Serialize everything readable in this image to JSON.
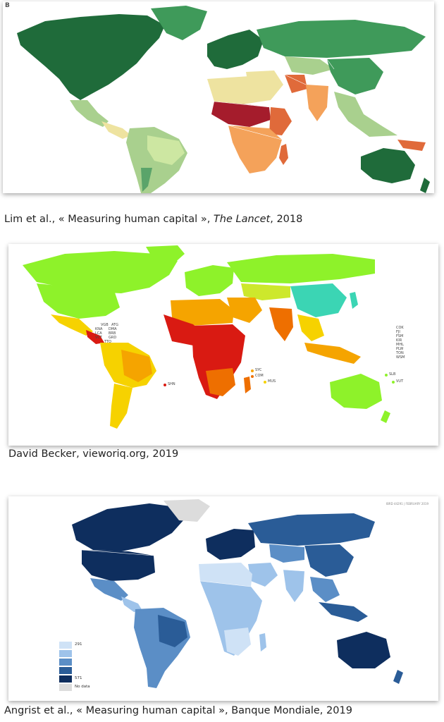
{
  "maps": [
    {
      "panel_label": "B",
      "caption_pre": "Lim et al., « Measuring human capital », ",
      "caption_journal": "The Lancet",
      "caption_post": ", 2018",
      "colors": {
        "high": "#1f6b3a",
        "mid_high": "#3f9a5a",
        "mid": "#a9d08e",
        "low_mid": "#eee3a0",
        "low": "#f4a25a",
        "lower": "#e06a3a",
        "lowest": "#a51c2c",
        "ocean": "#ffffff"
      }
    },
    {
      "caption": "David Becker, vieworiq.org, 2019",
      "colors": {
        "high": "#8ef22a",
        "mid_high": "#cde82c",
        "mid": "#f6d200",
        "low_mid": "#f5a400",
        "low": "#ee6f00",
        "lowest": "#d91a12",
        "teal": "#3bd5b4"
      },
      "country_labels": [
        "VGB",
        "ATG",
        "KNA",
        "DMA",
        "LCA",
        "BRB",
        "VCT",
        "GRD",
        "TTO",
        "SHN",
        "SYC",
        "COM",
        "MUS",
        "COK",
        "FJI",
        "FSM",
        "KIR",
        "MHL",
        "PLW",
        "TON",
        "WSM",
        "SLB",
        "VUT"
      ]
    },
    {
      "caption": "Angrist et al., « Measuring human capital », Banque Mondiale, 2019",
      "colors": {
        "c1": "#cfe2f6",
        "c2": "#9ec3ea",
        "c3": "#5b8ec6",
        "c4": "#2a5c97",
        "c5": "#0e2e5e",
        "nodata": "#dcdcdc"
      },
      "legend": {
        "min": "291",
        "max": "571",
        "no_data": "No data"
      },
      "source_note": "IBRD 44291 | FEBRUARY 2019"
    }
  ]
}
